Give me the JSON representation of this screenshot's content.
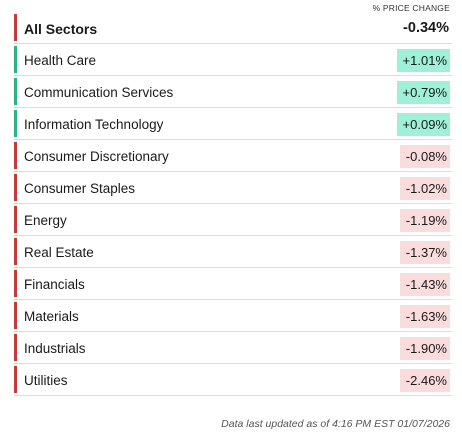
{
  "header": {
    "column_label": "% PRICE CHANGE"
  },
  "colors": {
    "positive_bar": "#2bb38a",
    "negative_bar": "#c73a3a",
    "positive_bg": "#9ef0d6",
    "negative_bg": "#fbdcdc"
  },
  "sectors": [
    {
      "name": "All Sectors",
      "change": "-0.34%",
      "direction": "negative",
      "is_total": true
    },
    {
      "name": "Health Care",
      "change": "+1.01%",
      "direction": "positive",
      "is_total": false
    },
    {
      "name": "Communication Services",
      "change": "+0.79%",
      "direction": "positive",
      "is_total": false
    },
    {
      "name": "Information Technology",
      "change": "+0.09%",
      "direction": "positive",
      "is_total": false
    },
    {
      "name": "Consumer Discretionary",
      "change": "-0.08%",
      "direction": "negative",
      "is_total": false
    },
    {
      "name": "Consumer Staples",
      "change": "-1.02%",
      "direction": "negative",
      "is_total": false
    },
    {
      "name": "Energy",
      "change": "-1.19%",
      "direction": "negative",
      "is_total": false
    },
    {
      "name": "Real Estate",
      "change": "-1.37%",
      "direction": "negative",
      "is_total": false
    },
    {
      "name": "Financials",
      "change": "-1.43%",
      "direction": "negative",
      "is_total": false
    },
    {
      "name": "Materials",
      "change": "-1.63%",
      "direction": "negative",
      "is_total": false
    },
    {
      "name": "Industrials",
      "change": "-1.90%",
      "direction": "negative",
      "is_total": false
    },
    {
      "name": "Utilities",
      "change": "-2.46%",
      "direction": "negative",
      "is_total": false
    }
  ],
  "footer": {
    "updated_text": "Data last updated as of 4:16 PM EST 01/07/2026"
  }
}
